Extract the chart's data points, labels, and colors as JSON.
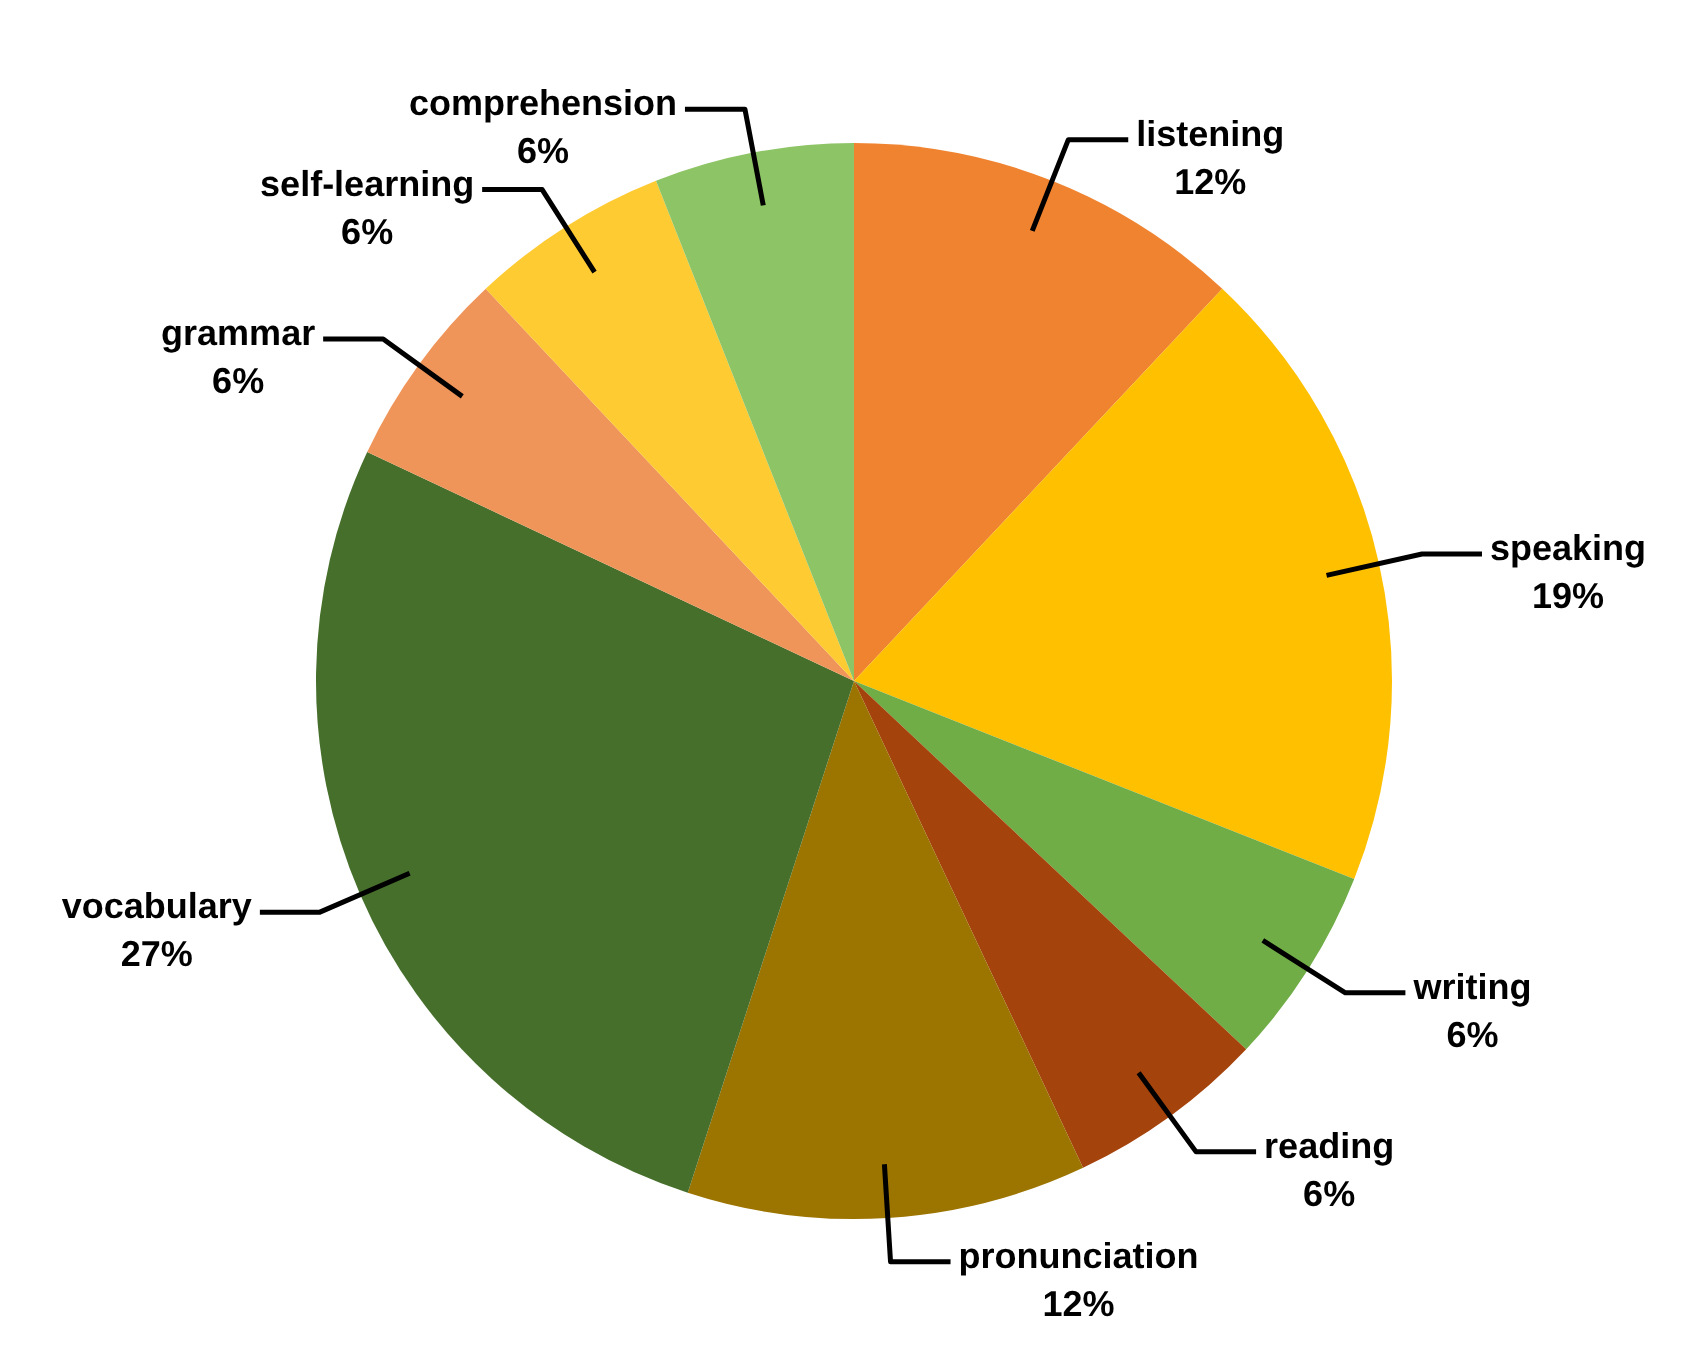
{
  "chart_data": {
    "type": "pie",
    "categories": [
      "listening",
      "speaking",
      "writing",
      "reading",
      "pronunciation",
      "vocabulary",
      "grammar",
      "self-learning",
      "comprehension"
    ],
    "values": [
      12,
      19,
      6,
      6,
      12,
      27,
      6,
      6,
      6
    ],
    "value_labels": [
      "12%",
      "19%",
      "6%",
      "6%",
      "12%",
      "27%",
      "6%",
      "6%",
      "6%"
    ],
    "colors": [
      "#f0832f",
      "#ffc000",
      "#70ad47",
      "#a5430c",
      "#9c7400",
      "#456f2b",
      "#f0955a",
      "#ffcb33",
      "#8dc465"
    ],
    "legend": false
  }
}
